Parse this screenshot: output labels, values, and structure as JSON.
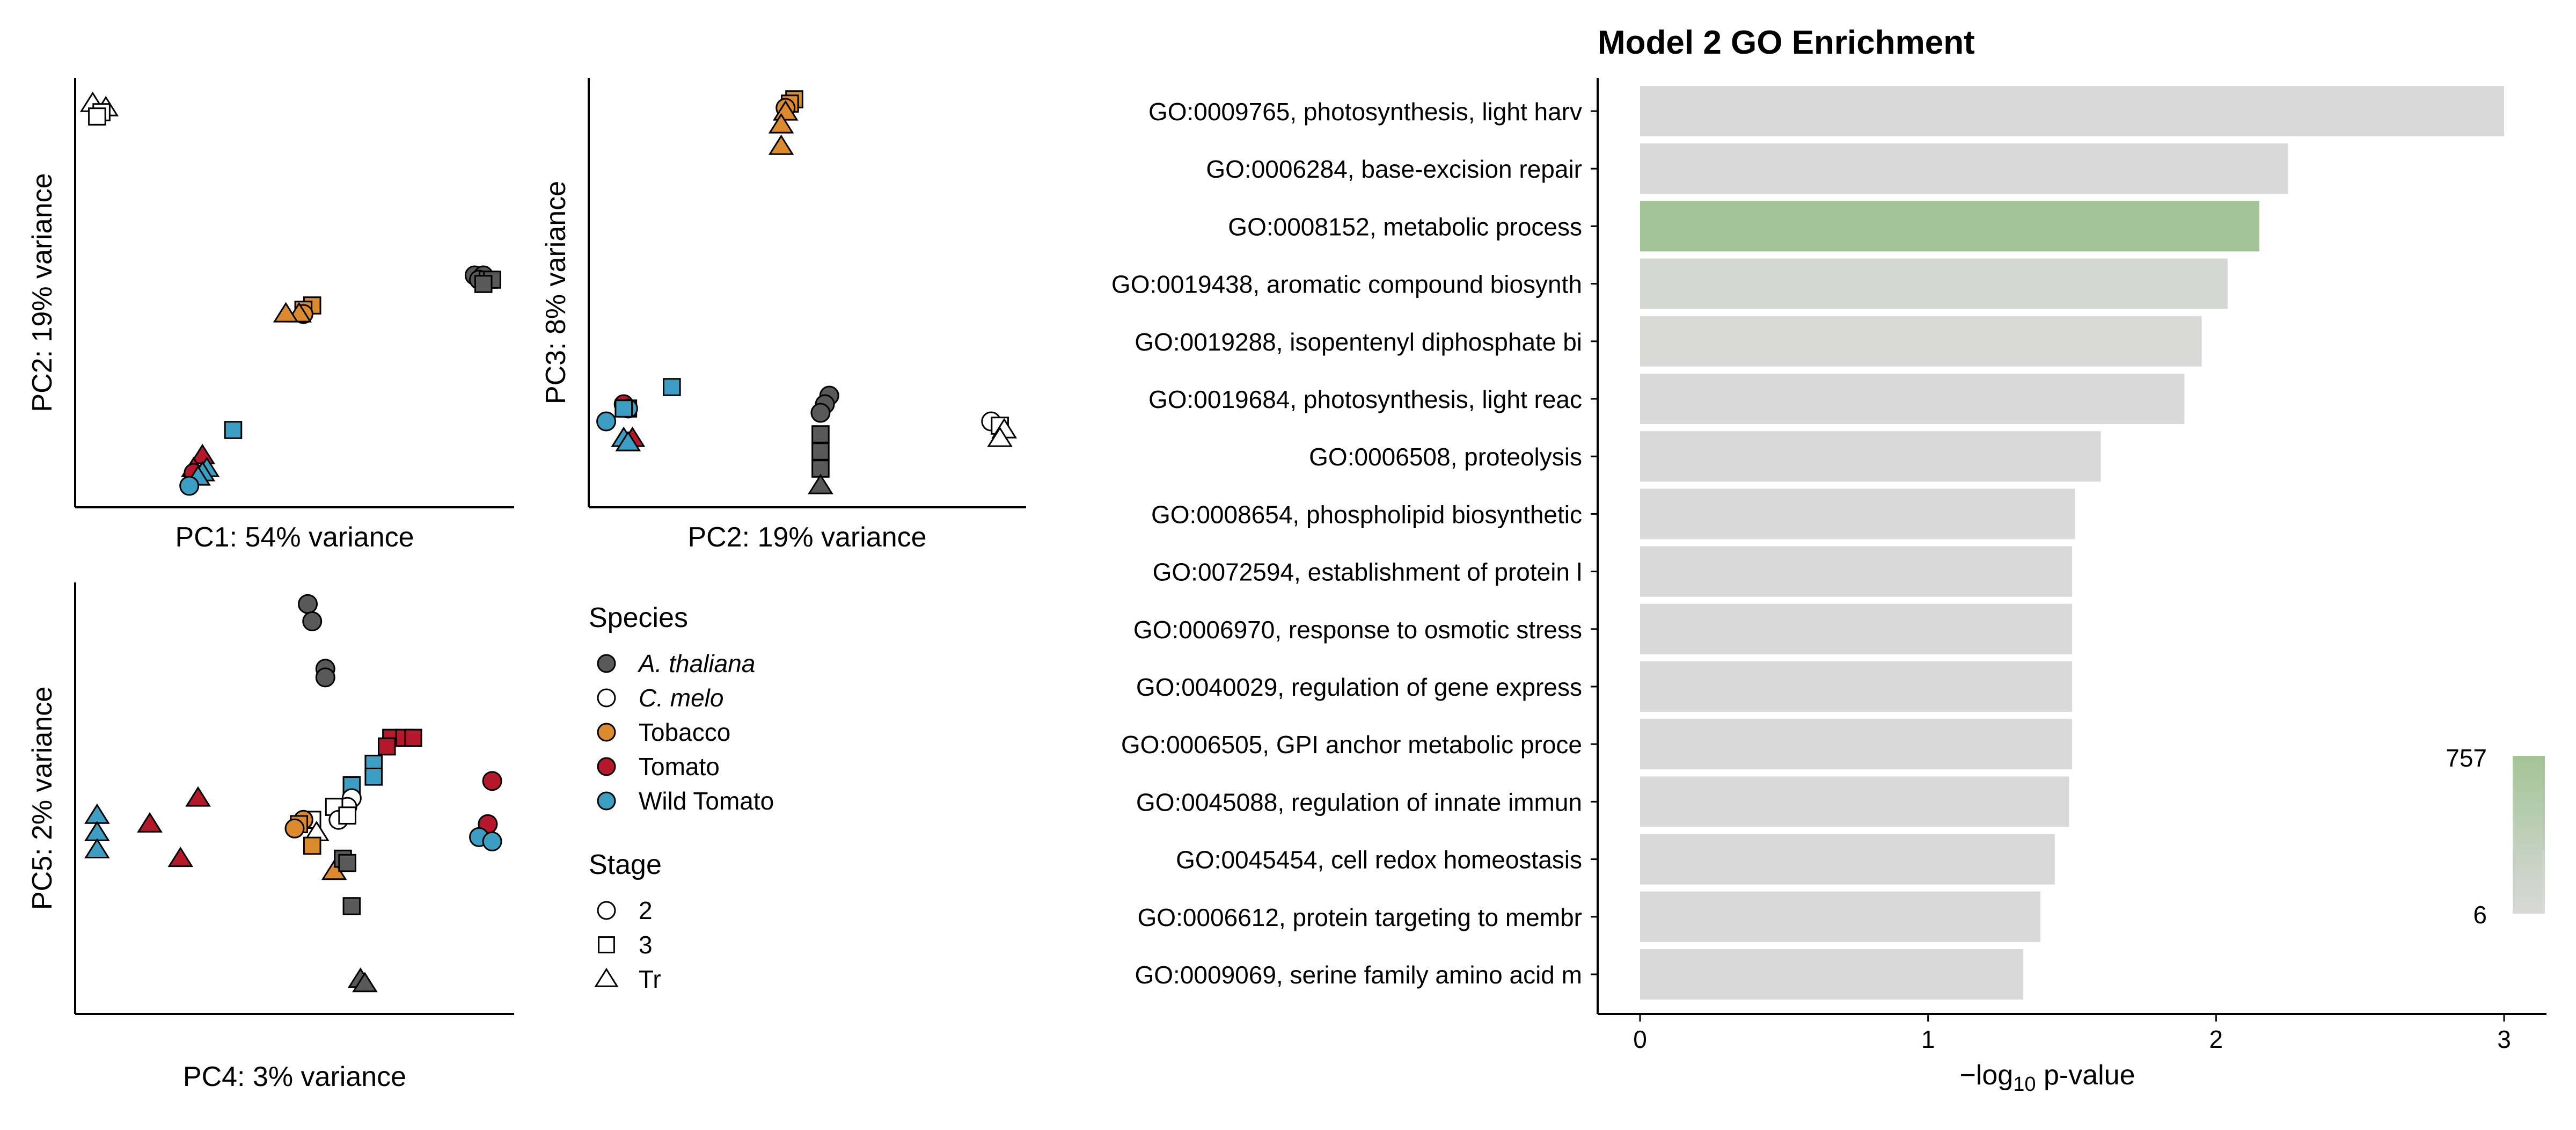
{
  "colors": {
    "species": {
      "A. thaliana": "#595959",
      "C. melo": "#ffffff",
      "Tobacco": "#db8a2e",
      "Tomato": "#b5182b",
      "Wild Tomato": "#3b9ec2"
    },
    "bar_default": "#d9d9d9",
    "bar_high": "#a3c497",
    "gradient_low": "#d9d9d9",
    "gradient_high": "#a3c497"
  },
  "legend": {
    "species_title": "Species",
    "species": [
      {
        "name": "A. thaliana",
        "italic": true
      },
      {
        "name": "C. melo",
        "italic": true
      },
      {
        "name": "Tobacco",
        "italic": false
      },
      {
        "name": "Tomato",
        "italic": false
      },
      {
        "name": "Wild Tomato",
        "italic": false
      }
    ],
    "stage_title": "Stage",
    "stages": [
      {
        "name": "2",
        "shape": "circle"
      },
      {
        "name": "3",
        "shape": "square"
      },
      {
        "name": "Tr",
        "shape": "triangle"
      }
    ]
  },
  "chart_data": [
    {
      "type": "scatter",
      "id": "pca-pc1-pc2",
      "xlabel": "PC1: 54% variance",
      "ylabel": "PC2: 19% variance",
      "xlim": [
        0,
        100
      ],
      "ylim": [
        0,
        100
      ],
      "points": [
        {
          "s": "C. melo",
          "g": "Tr",
          "x": 4,
          "y": 94
        },
        {
          "s": "C. melo",
          "g": "Tr",
          "x": 7,
          "y": 93
        },
        {
          "s": "C. melo",
          "g": "3",
          "x": 6,
          "y": 92
        },
        {
          "s": "C. melo",
          "g": "3",
          "x": 5,
          "y": 91
        },
        {
          "s": "A. thaliana",
          "g": "2",
          "x": 91,
          "y": 54
        },
        {
          "s": "A. thaliana",
          "g": "2",
          "x": 93,
          "y": 54
        },
        {
          "s": "A. thaliana",
          "g": "2",
          "x": 92,
          "y": 53
        },
        {
          "s": "A. thaliana",
          "g": "3",
          "x": 94,
          "y": 53
        },
        {
          "s": "A. thaliana",
          "g": "3",
          "x": 95,
          "y": 53
        },
        {
          "s": "A. thaliana",
          "g": "3",
          "x": 93,
          "y": 52
        },
        {
          "s": "Tobacco",
          "g": "3",
          "x": 54,
          "y": 47
        },
        {
          "s": "Tobacco",
          "g": "3",
          "x": 52,
          "y": 46
        },
        {
          "s": "Tobacco",
          "g": "2",
          "x": 52,
          "y": 45
        },
        {
          "s": "Tobacco",
          "g": "Tr",
          "x": 51,
          "y": 45
        },
        {
          "s": "Tobacco",
          "g": "Tr",
          "x": 48,
          "y": 45
        },
        {
          "s": "Wild Tomato",
          "g": "3",
          "x": 36,
          "y": 18
        },
        {
          "s": "Tomato",
          "g": "Tr",
          "x": 29,
          "y": 12
        },
        {
          "s": "Tomato",
          "g": "Tr",
          "x": 27,
          "y": 9
        },
        {
          "s": "Tomato",
          "g": "2",
          "x": 27,
          "y": 8
        },
        {
          "s": "Wild Tomato",
          "g": "Tr",
          "x": 30,
          "y": 9
        },
        {
          "s": "Wild Tomato",
          "g": "Tr",
          "x": 29,
          "y": 8
        },
        {
          "s": "Wild Tomato",
          "g": "Tr",
          "x": 28,
          "y": 7
        },
        {
          "s": "Wild Tomato",
          "g": "2",
          "x": 26,
          "y": 5
        }
      ]
    },
    {
      "type": "scatter",
      "id": "pca-pc2-pc3",
      "xlabel": "PC2: 19% variance",
      "ylabel": "PC3: 8% variance",
      "xlim": [
        0,
        100
      ],
      "ylim": [
        0,
        100
      ],
      "points": [
        {
          "s": "Tobacco",
          "g": "3",
          "x": 47,
          "y": 95
        },
        {
          "s": "Tobacco",
          "g": "3",
          "x": 46,
          "y": 94
        },
        {
          "s": "Tobacco",
          "g": "2",
          "x": 45,
          "y": 93
        },
        {
          "s": "Tobacco",
          "g": "Tr",
          "x": 45,
          "y": 92
        },
        {
          "s": "Tobacco",
          "g": "Tr",
          "x": 44,
          "y": 89
        },
        {
          "s": "Tobacco",
          "g": "Tr",
          "x": 44,
          "y": 84
        },
        {
          "s": "Wild Tomato",
          "g": "3",
          "x": 19,
          "y": 28
        },
        {
          "s": "Tomato",
          "g": "2",
          "x": 8,
          "y": 24
        },
        {
          "s": "Tomato",
          "g": "3",
          "x": 9,
          "y": 23
        },
        {
          "s": "Wild Tomato",
          "g": "2",
          "x": 9,
          "y": 23
        },
        {
          "s": "Wild Tomato",
          "g": "3",
          "x": 8,
          "y": 23
        },
        {
          "s": "Wild Tomato",
          "g": "2",
          "x": 4,
          "y": 20
        },
        {
          "s": "Tomato",
          "g": "Tr",
          "x": 10,
          "y": 16
        },
        {
          "s": "Wild Tomato",
          "g": "Tr",
          "x": 8,
          "y": 16
        },
        {
          "s": "Wild Tomato",
          "g": "Tr",
          "x": 9,
          "y": 15
        },
        {
          "s": "A. thaliana",
          "g": "2",
          "x": 55,
          "y": 26
        },
        {
          "s": "A. thaliana",
          "g": "2",
          "x": 54,
          "y": 24
        },
        {
          "s": "A. thaliana",
          "g": "2",
          "x": 53,
          "y": 22
        },
        {
          "s": "A. thaliana",
          "g": "3",
          "x": 53,
          "y": 17
        },
        {
          "s": "A. thaliana",
          "g": "3",
          "x": 53,
          "y": 13
        },
        {
          "s": "A. thaliana",
          "g": "3",
          "x": 53,
          "y": 9
        },
        {
          "s": "A. thaliana",
          "g": "Tr",
          "x": 53,
          "y": 5
        },
        {
          "s": "C. melo",
          "g": "2",
          "x": 92,
          "y": 20
        },
        {
          "s": "C. melo",
          "g": "3",
          "x": 94,
          "y": 19
        },
        {
          "s": "C. melo",
          "g": "Tr",
          "x": 95,
          "y": 18
        },
        {
          "s": "C. melo",
          "g": "Tr",
          "x": 94,
          "y": 16
        }
      ]
    },
    {
      "type": "scatter",
      "id": "pca-pc4-pc5",
      "xlabel": "PC4: 3% variance",
      "ylabel": "PC5: 2% variance",
      "xlim": [
        0,
        100
      ],
      "ylim": [
        0,
        100
      ],
      "points": [
        {
          "s": "A. thaliana",
          "g": "2",
          "x": 53,
          "y": 95
        },
        {
          "s": "A. thaliana",
          "g": "2",
          "x": 54,
          "y": 91
        },
        {
          "s": "A. thaliana",
          "g": "2",
          "x": 57,
          "y": 80
        },
        {
          "s": "A. thaliana",
          "g": "2",
          "x": 57,
          "y": 78
        },
        {
          "s": "Tomato",
          "g": "3",
          "x": 72,
          "y": 64
        },
        {
          "s": "Tomato",
          "g": "3",
          "x": 75,
          "y": 64
        },
        {
          "s": "Tomato",
          "g": "3",
          "x": 77,
          "y": 64
        },
        {
          "s": "Tomato",
          "g": "3",
          "x": 71,
          "y": 62
        },
        {
          "s": "Wild Tomato",
          "g": "3",
          "x": 68,
          "y": 58
        },
        {
          "s": "Wild Tomato",
          "g": "3",
          "x": 68,
          "y": 55
        },
        {
          "s": "Wild Tomato",
          "g": "3",
          "x": 63,
          "y": 53
        },
        {
          "s": "C. melo",
          "g": "2",
          "x": 63,
          "y": 50
        },
        {
          "s": "C. melo",
          "g": "2",
          "x": 62,
          "y": 48
        },
        {
          "s": "C. melo",
          "g": "3",
          "x": 59,
          "y": 48
        },
        {
          "s": "C. melo",
          "g": "2",
          "x": 60,
          "y": 45
        },
        {
          "s": "C. melo",
          "g": "3",
          "x": 62,
          "y": 46
        },
        {
          "s": "C. melo",
          "g": "3",
          "x": 54,
          "y": 45
        },
        {
          "s": "C. melo",
          "g": "Tr",
          "x": 55,
          "y": 42
        },
        {
          "s": "Tobacco",
          "g": "2",
          "x": 52,
          "y": 45
        },
        {
          "s": "Tobacco",
          "g": "3",
          "x": 51,
          "y": 44
        },
        {
          "s": "Tobacco",
          "g": "2",
          "x": 50,
          "y": 43
        },
        {
          "s": "Tobacco",
          "g": "3",
          "x": 54,
          "y": 39
        },
        {
          "s": "Tobacco",
          "g": "Tr",
          "x": 59,
          "y": 33
        },
        {
          "s": "A. thaliana",
          "g": "3",
          "x": 61,
          "y": 36
        },
        {
          "s": "A. thaliana",
          "g": "3",
          "x": 62,
          "y": 35
        },
        {
          "s": "A. thaliana",
          "g": "3",
          "x": 63,
          "y": 25
        },
        {
          "s": "A. thaliana",
          "g": "Tr",
          "x": 65,
          "y": 8
        },
        {
          "s": "A. thaliana",
          "g": "Tr",
          "x": 66,
          "y": 7
        },
        {
          "s": "Tomato",
          "g": "Tr",
          "x": 28,
          "y": 50
        },
        {
          "s": "Tomato",
          "g": "Tr",
          "x": 17,
          "y": 44
        },
        {
          "s": "Tomato",
          "g": "Tr",
          "x": 24,
          "y": 36
        },
        {
          "s": "Wild Tomato",
          "g": "Tr",
          "x": 5,
          "y": 46
        },
        {
          "s": "Wild Tomato",
          "g": "Tr",
          "x": 5,
          "y": 42
        },
        {
          "s": "Wild Tomato",
          "g": "Tr",
          "x": 5,
          "y": 38
        },
        {
          "s": "Tomato",
          "g": "2",
          "x": 95,
          "y": 54
        },
        {
          "s": "Tomato",
          "g": "2",
          "x": 94,
          "y": 44
        },
        {
          "s": "Wild Tomato",
          "g": "2",
          "x": 92,
          "y": 41
        },
        {
          "s": "Wild Tomato",
          "g": "2",
          "x": 95,
          "y": 40
        }
      ]
    },
    {
      "type": "bar",
      "id": "go-enrichment",
      "orientation": "horizontal",
      "title": "Model 2 GO Enrichment",
      "xlabel_prefix": "−log",
      "xlabel_sub": "10",
      "xlabel_suffix": " p-value",
      "xlim": [
        0,
        3.15
      ],
      "xticks": [
        0,
        1,
        2,
        3
      ],
      "categories": [
        "GO:0009765, photosynthesis, light harv",
        "GO:0006284, base-excision repair",
        "GO:0008152, metabolic process",
        "GO:0019438, aromatic compound biosynth",
        "GO:0019288, isopentenyl diphosphate bi",
        "GO:0019684, photosynthesis, light reac",
        "GO:0006508, proteolysis",
        "GO:0008654, phospholipid biosynthetic ",
        "GO:0072594, establishment of protein l",
        "GO:0006970, response to osmotic stress",
        "GO:0040029, regulation of gene express",
        "GO:0006505, GPI anchor metabolic proce",
        "GO:0045088, regulation of innate immun",
        "GO:0045454, cell redox homeostasis",
        "GO:0006612, protein targeting to membr",
        "GO:0009069, serine family amino acid m"
      ],
      "values": [
        3.0,
        2.25,
        2.15,
        2.04,
        1.95,
        1.89,
        1.6,
        1.51,
        1.5,
        1.5,
        1.5,
        1.5,
        1.49,
        1.44,
        1.39,
        1.33
      ],
      "color_values": [
        6,
        6,
        757,
        60,
        12,
        8,
        10,
        8,
        6,
        6,
        6,
        6,
        6,
        6,
        6,
        6
      ],
      "colorbar": {
        "min": 6,
        "max": 757,
        "min_label": "6",
        "max_label": "757"
      }
    }
  ]
}
